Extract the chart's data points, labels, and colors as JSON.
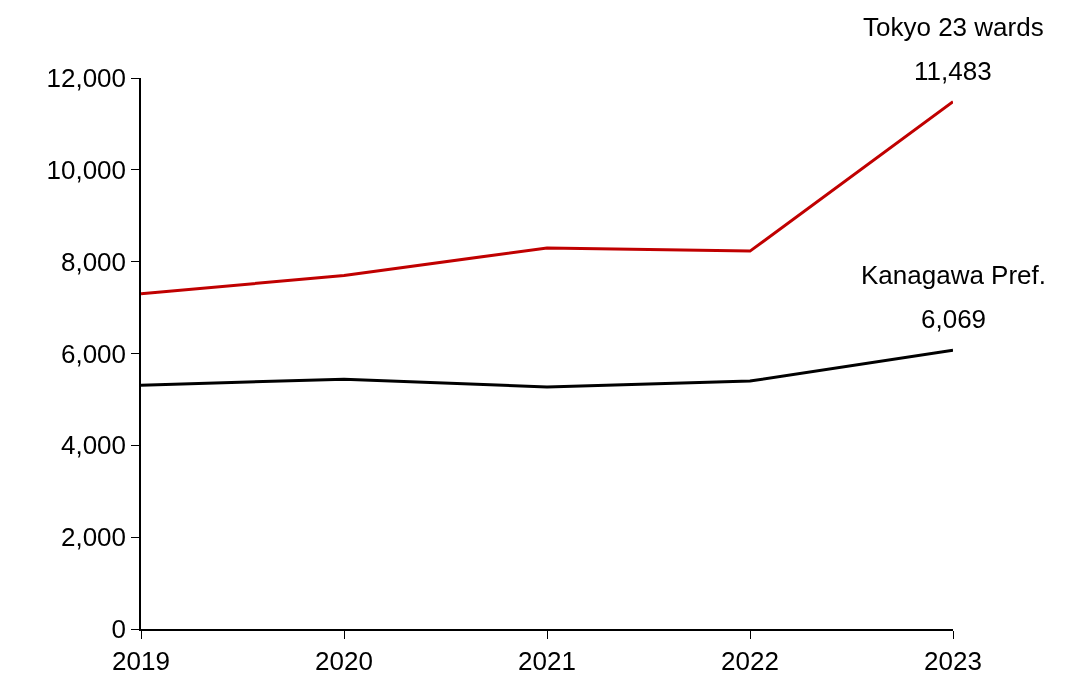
{
  "chart_data": {
    "type": "line",
    "x": [
      2019,
      2020,
      2021,
      2022,
      2023
    ],
    "series": [
      {
        "name": "Tokyo 23 wards",
        "color": "#c00000",
        "values": [
          7300,
          7700,
          8300,
          8230,
          11483
        ],
        "value_labels": [
          null,
          null,
          null,
          null,
          "11,483"
        ]
      },
      {
        "name": "Kanagawa Pref.",
        "color": "#000000",
        "values": [
          5310,
          5440,
          5270,
          5400,
          6069
        ],
        "value_labels": [
          null,
          null,
          null,
          null,
          "6,069"
        ]
      }
    ],
    "xlim": [
      2019,
      2023
    ],
    "xticks": [
      {
        "value": 2019,
        "label": "2019"
      },
      {
        "value": 2020,
        "label": "2020"
      },
      {
        "value": 2021,
        "label": "2021"
      },
      {
        "value": 2022,
        "label": "2022"
      },
      {
        "value": 2023,
        "label": "2023"
      }
    ],
    "ylim": [
      0,
      12000
    ],
    "yticks": [
      {
        "value": 0,
        "label": "0"
      },
      {
        "value": 2000,
        "label": "2,000"
      },
      {
        "value": 4000,
        "label": "4,000"
      },
      {
        "value": 6000,
        "label": "6,000"
      },
      {
        "value": 8000,
        "label": "8,000"
      },
      {
        "value": 10000,
        "label": "10,000"
      },
      {
        "value": 12000,
        "label": "12,000"
      }
    ],
    "grid": false,
    "legend": false,
    "marker": "none",
    "line_style": "solid"
  }
}
